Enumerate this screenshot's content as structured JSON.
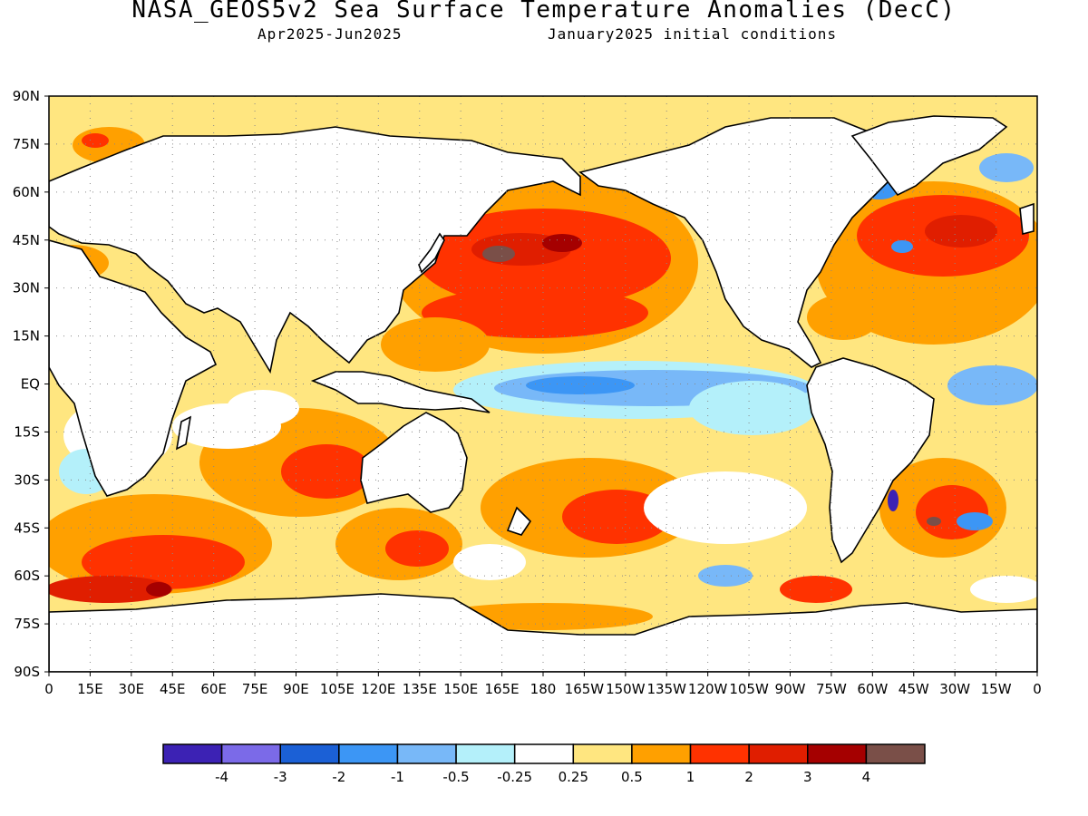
{
  "title": "NASA_GEOS5v2 Sea Surface Temperature Anomalies (DecC)",
  "subtitle_left": "Apr2025-Jun2025",
  "subtitle_right": "January2025 initial conditions",
  "map": {
    "lat_labels": [
      "90N",
      "75N",
      "60N",
      "45N",
      "30N",
      "15N",
      "EQ",
      "15S",
      "30S",
      "45S",
      "60S",
      "75S",
      "90S"
    ],
    "lon_labels": [
      "0",
      "15E",
      "30E",
      "45E",
      "60E",
      "75E",
      "90E",
      "105E",
      "120E",
      "135E",
      "150E",
      "165E",
      "180",
      "165W",
      "150W",
      "135W",
      "120W",
      "105W",
      "90W",
      "75W",
      "60W",
      "45W",
      "30W",
      "15W",
      "0"
    ],
    "ocean_base_color": "#ffe680",
    "land_color": "#ffffff",
    "coastline_color": "#000000",
    "grid": "dotted"
  },
  "colorbar": {
    "colors": [
      "#3c22b4",
      "#7b6ae8",
      "#1b60d6",
      "#3c96f5",
      "#78b8f8",
      "#b4f0fa",
      "#ffffff",
      "#ffe680",
      "#ffa000",
      "#ff3200",
      "#e01e00",
      "#a50000",
      "#7a4f48"
    ],
    "labels": [
      "-4",
      "-3",
      "-2",
      "-1",
      "-0.5",
      "-0.25",
      "0.25",
      "0.5",
      "1",
      "2",
      "3",
      "4"
    ]
  }
}
